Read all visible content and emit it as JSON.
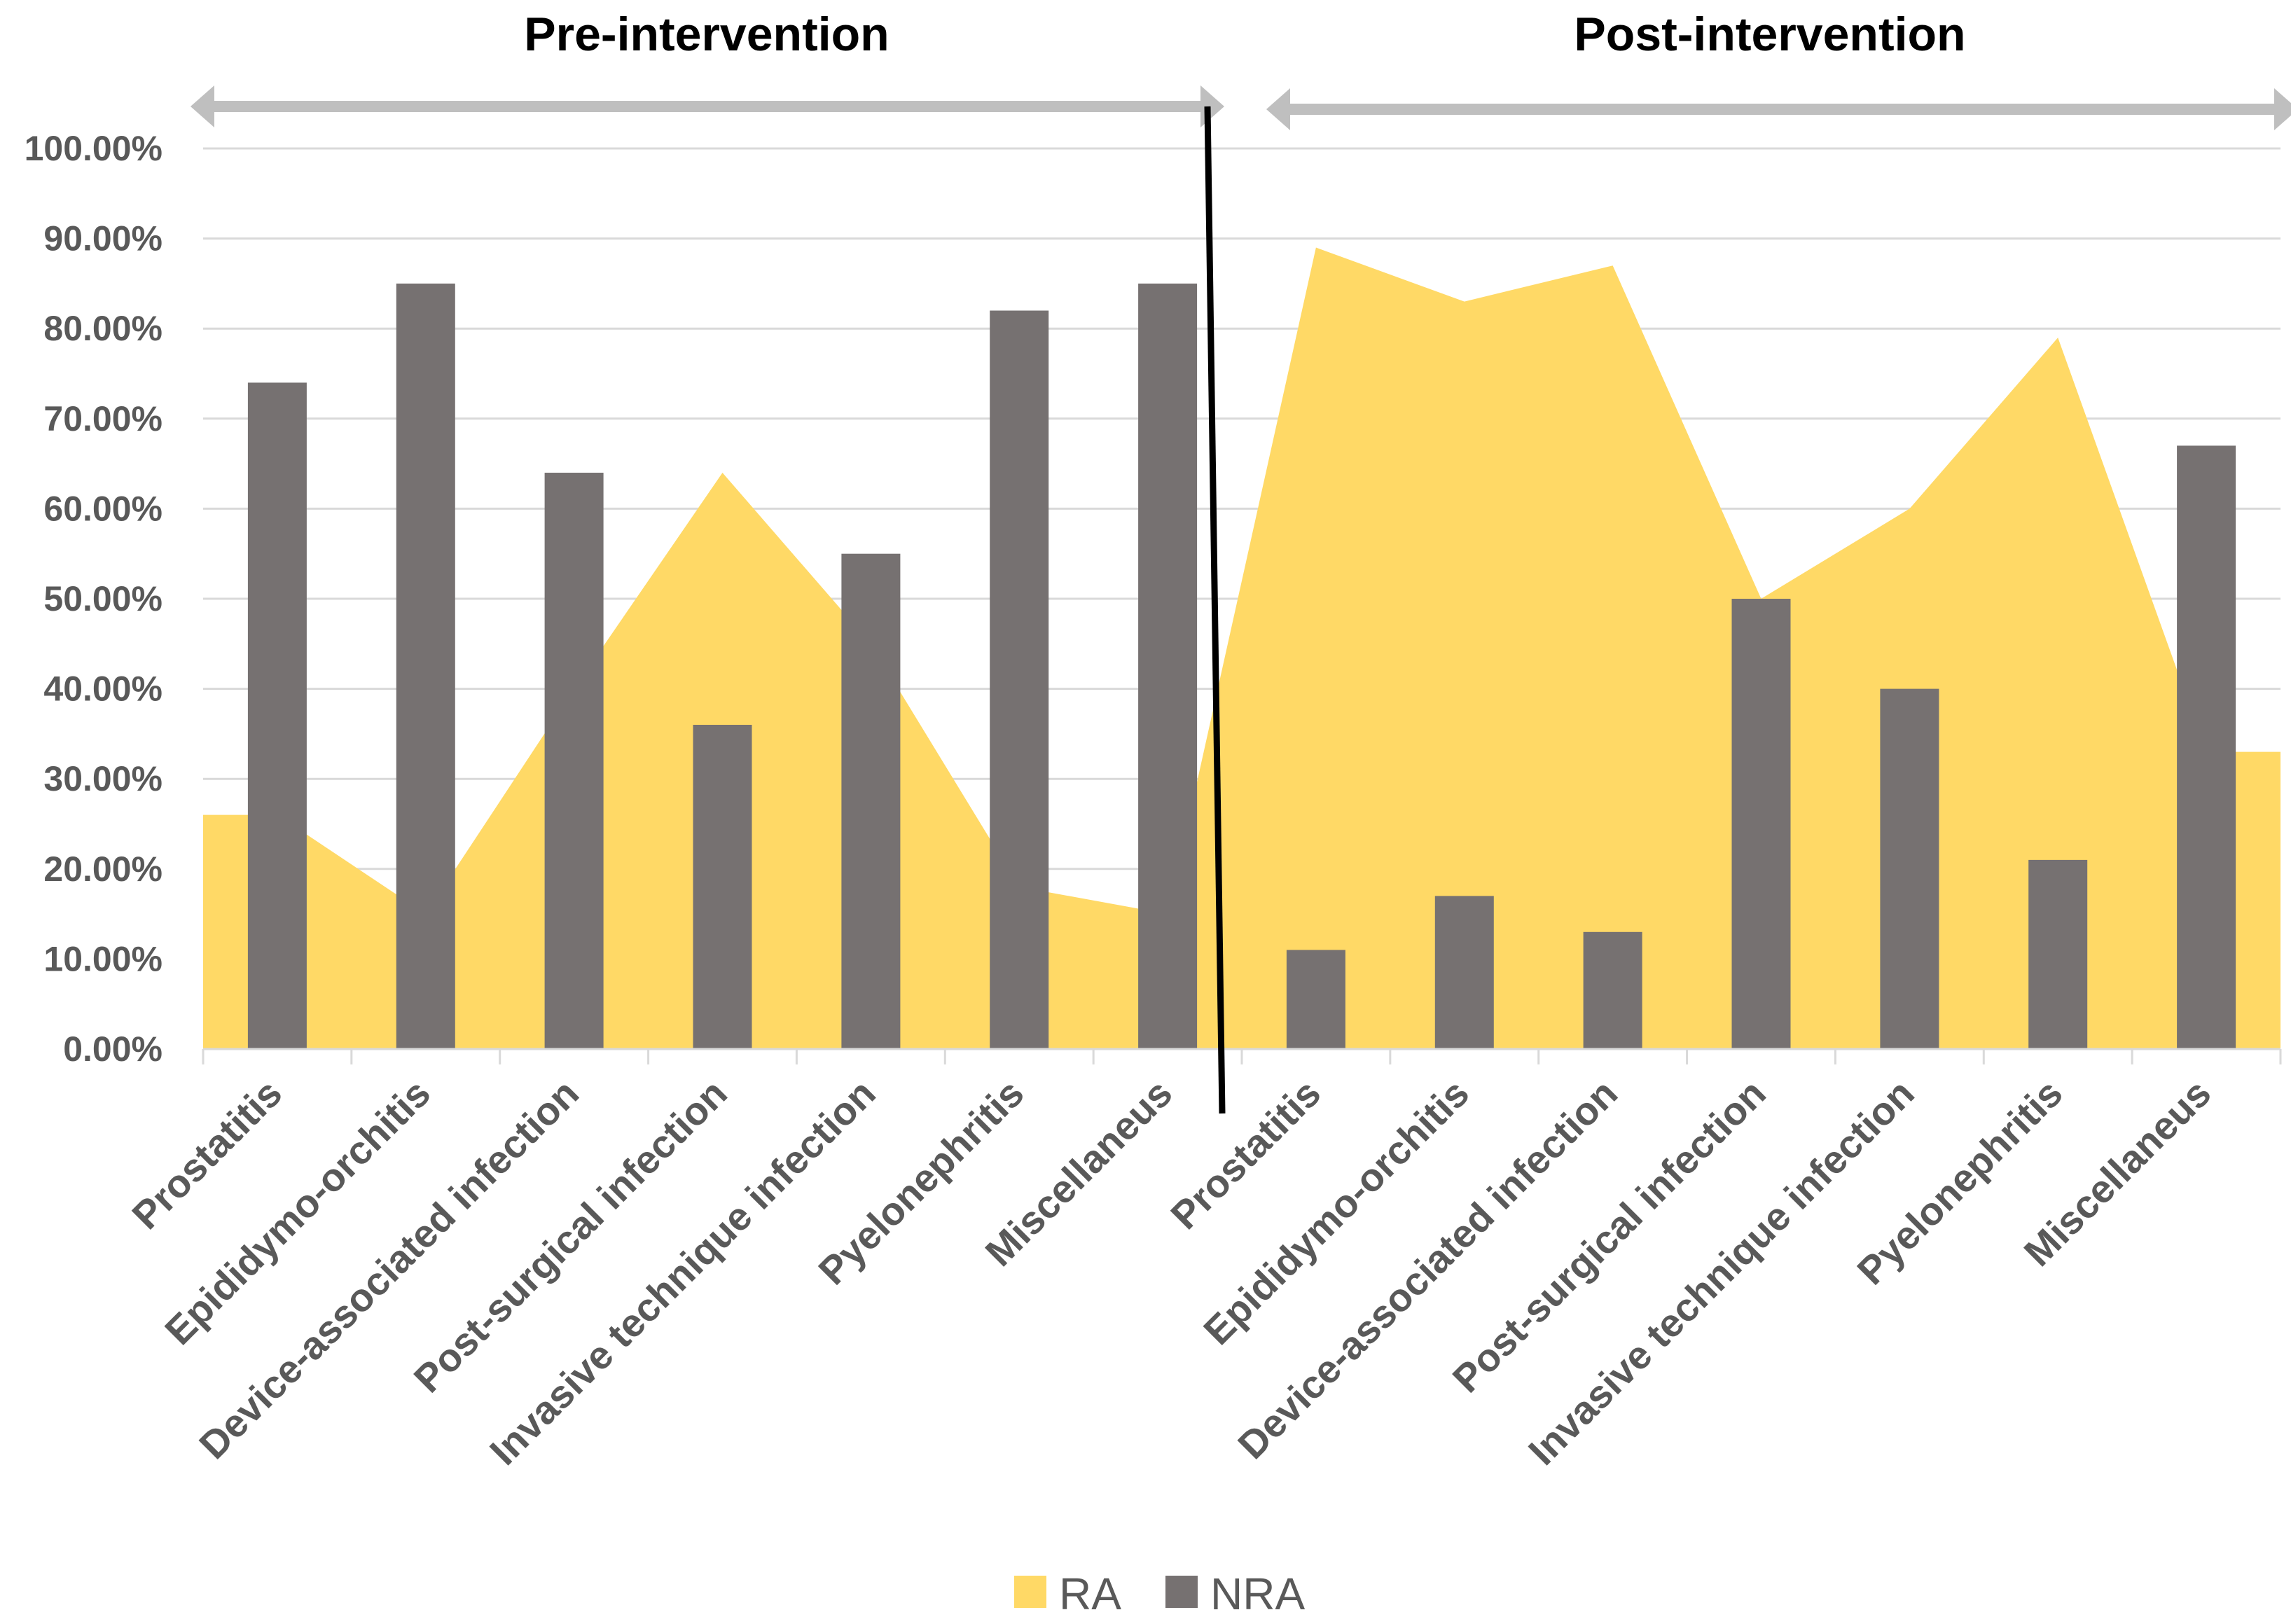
{
  "chart_data": {
    "type": "bar+area",
    "y_axis": {
      "min": 0,
      "max": 1,
      "step": 0.1,
      "tick_labels": [
        "0.00%",
        "10.00%",
        "20.00%",
        "30.00%",
        "40.00%",
        "50.00%",
        "60.00%",
        "70.00%",
        "80.00%",
        "90.00%",
        "100.00%"
      ]
    },
    "grid": true,
    "phases": [
      {
        "label": "Pre-intervention",
        "start_index": 0,
        "end_index": 6
      },
      {
        "label": "Post-intervention",
        "start_index": 7,
        "end_index": 13
      }
    ],
    "categories": [
      "Prostatitis",
      "Epididymo-orchitis",
      "Device-associated infection",
      "Post-surgical infection",
      "Invasive technique infection",
      "Pyelonephritis",
      "Miscellaneus",
      "Prostatitis",
      "Epididymo-orchitis",
      "Device-associated infection",
      "Post-surgical infection",
      "Invasive technique infection",
      "Pyelonephritis",
      "Miscellaneus"
    ],
    "series": [
      {
        "name": "RA",
        "kind": "area",
        "color": "#FFD966",
        "values": [
          0.26,
          0.15,
          0.4,
          0.64,
          0.45,
          0.18,
          0.15,
          0.89,
          0.83,
          0.87,
          0.5,
          0.6,
          0.79,
          0.33
        ]
      },
      {
        "name": "NRA",
        "kind": "bar",
        "color": "#767171",
        "values": [
          0.74,
          0.85,
          0.64,
          0.36,
          0.55,
          0.82,
          0.85,
          0.11,
          0.17,
          0.13,
          0.5,
          0.4,
          0.21,
          0.67
        ]
      }
    ],
    "legend": {
      "position": "bottom-center",
      "entries": [
        "RA",
        "NRA"
      ]
    },
    "colors": {
      "axis_text": "#595959",
      "grid": "#D9D9D9",
      "phase_arrow": "#BFBFBF",
      "divider": "#000000"
    }
  }
}
